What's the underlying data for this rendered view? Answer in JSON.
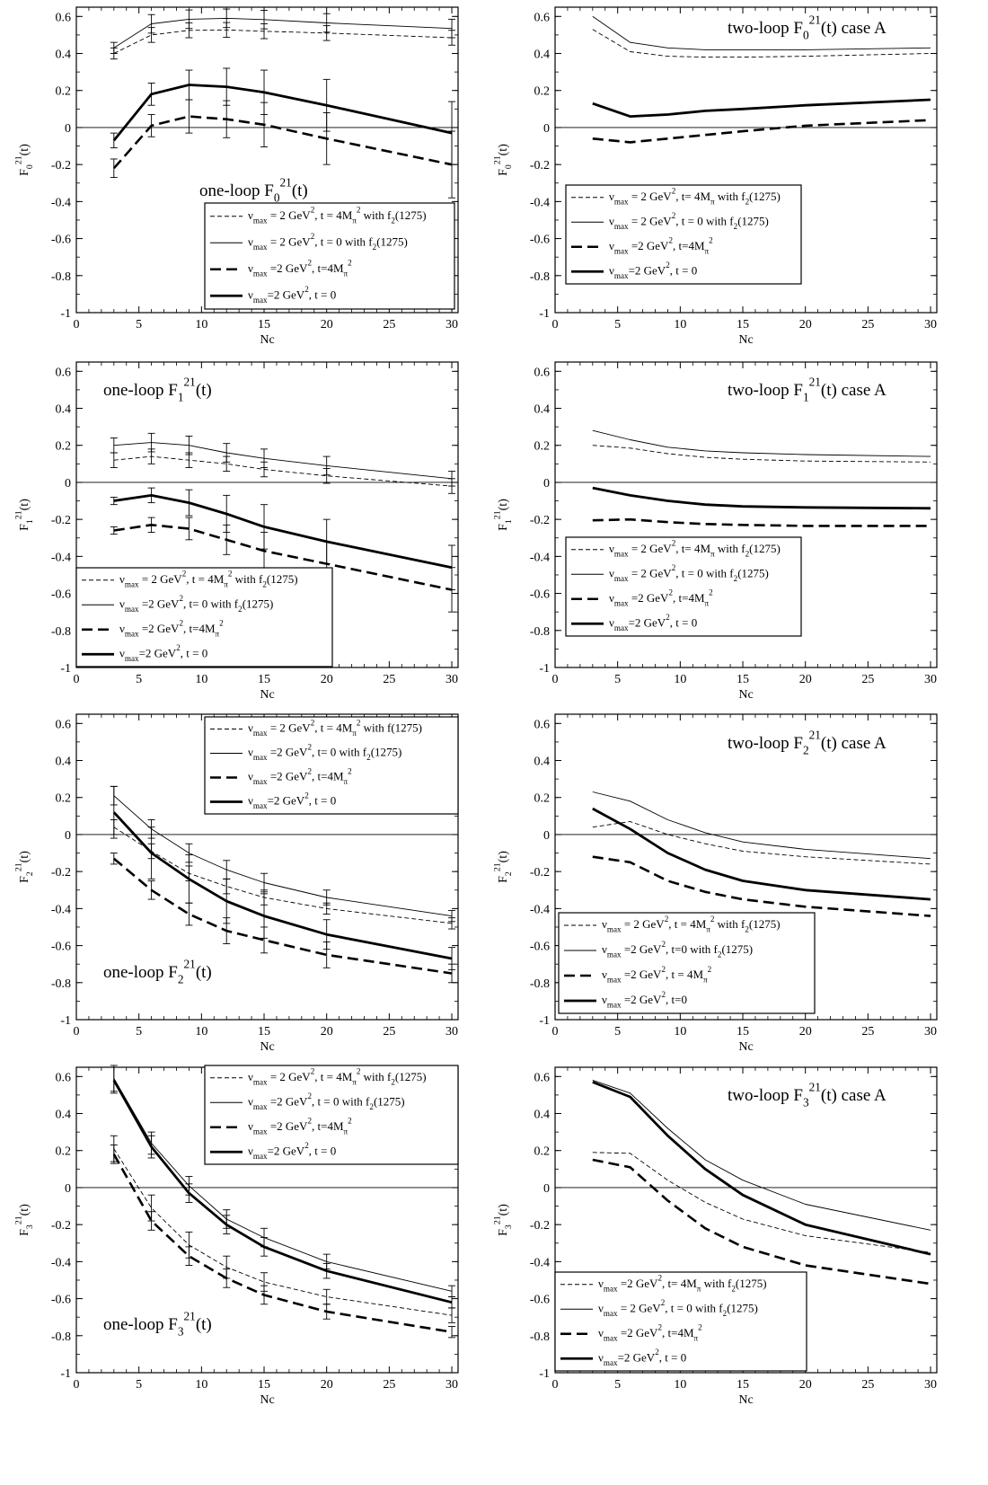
{
  "chart_data": [
    {
      "type": "line",
      "title": "one-loop F_0^21(t)",
      "xlabel": "Nc",
      "ylabel": "F_0^21(t)",
      "xlim": [
        0,
        30.5
      ],
      "ylim": [
        -1,
        0.65
      ],
      "xticks": [
        0,
        5,
        10,
        15,
        20,
        25,
        30
      ],
      "yticks": [
        -1,
        -0.8,
        -0.6,
        -0.4,
        -0.2,
        0,
        0.2,
        0.4,
        0.6
      ],
      "x": [
        3,
        6,
        9,
        12,
        15,
        20,
        30
      ],
      "legend": "box in lower-middle",
      "series": [
        {
          "name": "ν_max = 2 GeV², t = 4M_π² with f_2(1275)",
          "style": "thin-dashed",
          "values": [
            0.4,
            0.5,
            0.525,
            0.527,
            0.52,
            0.51,
            0.485
          ],
          "errors": [
            0.03,
            0.04,
            0.04,
            0.04,
            0.04,
            0.04,
            0.04
          ]
        },
        {
          "name": "ν_max = 2 GeV², t = 0 with f_2(1275)",
          "style": "thin-solid",
          "values": [
            0.43,
            0.56,
            0.585,
            0.59,
            0.583,
            0.565,
            0.535
          ],
          "errors": [
            0.03,
            0.05,
            0.05,
            0.05,
            0.05,
            0.05,
            0.05
          ]
        },
        {
          "name": "ν_max =2 GeV², t=4M_π²",
          "style": "thick-dashed",
          "values": [
            -0.22,
            0.01,
            0.06,
            0.045,
            0.015,
            -0.06,
            -0.2
          ],
          "errors": [
            0.05,
            0.06,
            0.09,
            0.1,
            0.12,
            0.14,
            0.18
          ]
        },
        {
          "name": "ν_max=2 GeV², t = 0",
          "style": "thick-solid",
          "values": [
            -0.07,
            0.18,
            0.23,
            0.22,
            0.19,
            0.12,
            -0.03
          ],
          "errors": [
            0.04,
            0.06,
            0.08,
            0.1,
            0.12,
            0.14,
            0.17
          ]
        }
      ]
    },
    {
      "type": "line",
      "title": "two-loop F_0^21(t) case A",
      "xlabel": "Nc",
      "ylabel": "F_0^21(t)",
      "xlim": [
        0,
        30.5
      ],
      "ylim": [
        -1,
        0.65
      ],
      "xticks": [
        0,
        5,
        10,
        15,
        20,
        25,
        30
      ],
      "yticks": [
        -1,
        -0.8,
        -0.6,
        -0.4,
        -0.2,
        0,
        0.2,
        0.4,
        0.6
      ],
      "x": [
        3,
        6,
        9,
        12,
        15,
        20,
        30
      ],
      "legend": "box on left-middle",
      "series": [
        {
          "name": "ν_max = 2 GeV², t= 4M_π with f_2(1275)",
          "style": "thin-dashed",
          "values": [
            0.53,
            0.41,
            0.385,
            0.38,
            0.38,
            0.385,
            0.4
          ]
        },
        {
          "name": "ν_max = 2 GeV², t = 0  with f_2(1275)",
          "style": "thin-solid",
          "values": [
            0.6,
            0.46,
            0.43,
            0.42,
            0.42,
            0.42,
            0.43
          ]
        },
        {
          "name": "ν_max =2 GeV², t=4M_π²",
          "style": "thick-dashed",
          "values": [
            -0.06,
            -0.08,
            -0.06,
            -0.04,
            -0.02,
            0.01,
            0.04
          ]
        },
        {
          "name": "ν_max=2 GeV², t = 0",
          "style": "thick-solid",
          "values": [
            0.13,
            0.06,
            0.07,
            0.09,
            0.1,
            0.12,
            0.15
          ]
        }
      ]
    },
    {
      "type": "line",
      "title": "one-loop F_1^21(t)",
      "xlabel": "Nc",
      "ylabel": "F_1^21(t)",
      "xlim": [
        0,
        30.5
      ],
      "ylim": [
        -1,
        0.65
      ],
      "xticks": [
        0,
        5,
        10,
        15,
        20,
        25,
        30
      ],
      "yticks": [
        -1,
        -0.8,
        -0.6,
        -0.4,
        -0.2,
        0,
        0.2,
        0.4,
        0.6
      ],
      "x": [
        3,
        6,
        9,
        12,
        15,
        20,
        30
      ],
      "legend": "box at bottom-left",
      "series": [
        {
          "name": "ν_max = 2 GeV², t = 4M_π² with f_2(1275)",
          "style": "thin-dashed",
          "values": [
            0.12,
            0.14,
            0.12,
            0.1,
            0.07,
            0.035,
            -0.02
          ],
          "errors": [
            0.04,
            0.04,
            0.04,
            0.04,
            0.04,
            0.04,
            0.04
          ]
        },
        {
          "name": "ν_max =2 GeV², t= 0 with f_2(1275)",
          "style": "thin-solid",
          "values": [
            0.2,
            0.215,
            0.2,
            0.16,
            0.13,
            0.09,
            0.02
          ],
          "errors": [
            0.04,
            0.05,
            0.05,
            0.05,
            0.05,
            0.05,
            0.04
          ]
        },
        {
          "name": "ν_max =2 GeV², t=4M_π²",
          "style": "thick-dashed",
          "values": [
            -0.26,
            -0.23,
            -0.25,
            -0.31,
            -0.37,
            -0.44,
            -0.58
          ],
          "errors": [
            0.02,
            0.04,
            0.06,
            0.08,
            0.1,
            0.12,
            0.12
          ]
        },
        {
          "name": "ν_max=2 GeV², t = 0",
          "style": "thick-solid",
          "values": [
            -0.1,
            -0.07,
            -0.11,
            -0.17,
            -0.24,
            -0.32,
            -0.46
          ],
          "errors": [
            0.02,
            0.04,
            0.07,
            0.1,
            0.12,
            0.12,
            0.12
          ]
        }
      ]
    },
    {
      "type": "line",
      "title": "two-loop F_1^21(t) case A",
      "xlabel": "Nc",
      "ylabel": "F_1^21(t)",
      "xlim": [
        0,
        30.5
      ],
      "ylim": [
        -1,
        0.65
      ],
      "xticks": [
        0,
        5,
        10,
        15,
        20,
        25,
        30
      ],
      "yticks": [
        -1,
        -0.8,
        -0.6,
        -0.4,
        -0.2,
        0,
        0.2,
        0.4,
        0.6
      ],
      "x": [
        3,
        6,
        9,
        12,
        15,
        20,
        30
      ],
      "legend": "box on left-lower",
      "series": [
        {
          "name": "ν_max = 2 GeV², t= 4M_π with f_2(1275)",
          "style": "thin-dashed",
          "values": [
            0.2,
            0.185,
            0.155,
            0.135,
            0.125,
            0.115,
            0.11
          ]
        },
        {
          "name": "ν_max = 2 GeV², t = 0  with f_2(1275)",
          "style": "thin-solid",
          "values": [
            0.28,
            0.23,
            0.19,
            0.17,
            0.16,
            0.15,
            0.14
          ]
        },
        {
          "name": "ν_max =2 GeV², t=4M_π²",
          "style": "thick-dashed",
          "values": [
            -0.205,
            -0.2,
            -0.215,
            -0.225,
            -0.23,
            -0.235,
            -0.235
          ]
        },
        {
          "name": "ν_max=2 GeV², t = 0",
          "style": "thick-solid",
          "values": [
            -0.03,
            -0.07,
            -0.1,
            -0.12,
            -0.13,
            -0.135,
            -0.14
          ]
        }
      ]
    },
    {
      "type": "line",
      "title": "one-loop F_2^21(t)",
      "xlabel": "Nc",
      "ylabel": "F_2^21(t)",
      "xlim": [
        0,
        30.5
      ],
      "ylim": [
        -1,
        0.65
      ],
      "xticks": [
        0,
        5,
        10,
        15,
        20,
        25,
        30
      ],
      "yticks": [
        -1,
        -0.8,
        -0.6,
        -0.4,
        -0.2,
        0,
        0.2,
        0.4,
        0.6
      ],
      "x": [
        3,
        6,
        9,
        12,
        15,
        20,
        30
      ],
      "legend": "box at top-right",
      "series": [
        {
          "name": "ν_max = 2 GeV², t = 4M_π² with f(1275)",
          "style": "thin-dashed",
          "values": [
            0.04,
            -0.09,
            -0.21,
            -0.28,
            -0.34,
            -0.4,
            -0.48
          ],
          "errors": [
            0.04,
            0.04,
            0.04,
            0.04,
            0.04,
            0.03,
            0.03
          ]
        },
        {
          "name": "ν_max =2 GeV², t= 0 with f_2(1275)",
          "style": "thin-solid",
          "values": [
            0.21,
            0.03,
            -0.1,
            -0.19,
            -0.26,
            -0.34,
            -0.44
          ],
          "errors": [
            0.05,
            0.05,
            0.05,
            0.05,
            0.05,
            0.04,
            0.03
          ]
        },
        {
          "name": "ν_max =2 GeV², t=4M_π²",
          "style": "thick-dashed",
          "values": [
            -0.13,
            -0.3,
            -0.43,
            -0.52,
            -0.57,
            -0.65,
            -0.75
          ],
          "errors": [
            0.03,
            0.05,
            0.06,
            0.07,
            0.07,
            0.07,
            0.05
          ]
        },
        {
          "name": "ν_max=2 GeV², t = 0",
          "style": "thick-solid",
          "values": [
            0.12,
            -0.1,
            -0.24,
            -0.36,
            -0.44,
            -0.54,
            -0.67
          ],
          "errors": [
            0.14,
            0.14,
            0.13,
            0.12,
            0.12,
            0.08,
            0.06
          ]
        }
      ]
    },
    {
      "type": "line",
      "title": "two-loop F_2^21(t) case A",
      "xlabel": "Nc",
      "ylabel": "F_2^21(t)",
      "xlim": [
        0,
        30.5
      ],
      "ylim": [
        -1,
        0.65
      ],
      "xticks": [
        0,
        5,
        10,
        15,
        20,
        25,
        30
      ],
      "yticks": [
        -1,
        -0.8,
        -0.6,
        -0.4,
        -0.2,
        0,
        0.2,
        0.4,
        0.6
      ],
      "x": [
        3,
        6,
        9,
        12,
        15,
        20,
        30
      ],
      "legend": "box at bottom-left",
      "series": [
        {
          "name": "ν_max = 2 GeV², t = 4M_π² with f_2(1275)",
          "style": "thin-dashed",
          "values": [
            0.04,
            0.07,
            0.0,
            -0.05,
            -0.09,
            -0.12,
            -0.16
          ]
        },
        {
          "name": "ν_max =2 GeV², t=0 with f_2(1275)",
          "style": "thin-solid",
          "values": [
            0.23,
            0.18,
            0.08,
            0.01,
            -0.04,
            -0.08,
            -0.13
          ]
        },
        {
          "name": "ν_max =2 GeV², t = 4M_π²",
          "style": "thick-dashed",
          "values": [
            -0.12,
            -0.15,
            -0.25,
            -0.31,
            -0.35,
            -0.39,
            -0.44
          ]
        },
        {
          "name": "ν_max =2 GeV², t=0",
          "style": "thick-solid",
          "values": [
            0.14,
            0.03,
            -0.1,
            -0.19,
            -0.25,
            -0.3,
            -0.35
          ]
        }
      ]
    },
    {
      "type": "line",
      "title": "one-loop F_3^21(t)",
      "xlabel": "Nc",
      "ylabel": "F_3^21(t)",
      "xlim": [
        0,
        30.5
      ],
      "ylim": [
        -1,
        0.65
      ],
      "xticks": [
        0,
        5,
        10,
        15,
        20,
        25,
        30
      ],
      "yticks": [
        -1,
        -0.8,
        -0.6,
        -0.4,
        -0.2,
        0,
        0.2,
        0.4,
        0.6
      ],
      "x": [
        3,
        6,
        9,
        12,
        15,
        20,
        30
      ],
      "legend": "box at top-right",
      "series": [
        {
          "name": "ν_max = 2 GeV², t = 4M_π² with f_2(1275)",
          "style": "thin-dashed",
          "values": [
            0.21,
            -0.11,
            -0.31,
            -0.43,
            -0.51,
            -0.59,
            -0.69
          ],
          "errors": [
            0.07,
            0.07,
            0.07,
            0.06,
            0.05,
            0.04,
            0.04
          ]
        },
        {
          "name": "ν_max =2 GeV², t = 0 with f_2(1275)",
          "style": "thin-solid",
          "values": [
            0.59,
            0.24,
            0.01,
            -0.17,
            -0.27,
            -0.4,
            -0.56
          ],
          "errors": [
            0.07,
            0.06,
            0.05,
            0.05,
            0.05,
            0.04,
            0.03
          ]
        },
        {
          "name": "ν_max =2 GeV², t=4M_π²",
          "style": "thick-dashed",
          "values": [
            0.18,
            -0.18,
            -0.37,
            -0.49,
            -0.58,
            -0.67,
            -0.78
          ],
          "errors": [
            0.05,
            0.05,
            0.05,
            0.05,
            0.05,
            0.04,
            0.03
          ]
        },
        {
          "name": "ν_max=2 GeV², t = 0",
          "style": "thick-solid",
          "values": [
            0.58,
            0.22,
            -0.03,
            -0.2,
            -0.32,
            -0.45,
            -0.62
          ],
          "errors": [
            0.07,
            0.06,
            0.05,
            0.05,
            0.05,
            0.04,
            0.03
          ]
        }
      ]
    },
    {
      "type": "line",
      "title": "two-loop F_3^21(t) case A",
      "xlabel": "Nc",
      "ylabel": "F_3^21(t)",
      "xlim": [
        0,
        30.5
      ],
      "ylim": [
        -1,
        0.65
      ],
      "xticks": [
        0,
        5,
        10,
        15,
        20,
        25,
        30
      ],
      "yticks": [
        -1,
        -0.8,
        -0.6,
        -0.4,
        -0.2,
        0,
        0.2,
        0.4,
        0.6
      ],
      "x": [
        3,
        6,
        9,
        12,
        15,
        20,
        30
      ],
      "legend": "box at bottom-left",
      "series": [
        {
          "name": "ν_max =2 GeV², t= 4M_π with f_2(1275)",
          "style": "thin-dashed",
          "values": [
            0.19,
            0.185,
            0.04,
            -0.08,
            -0.17,
            -0.26,
            -0.35
          ]
        },
        {
          "name": "ν_max = 2 GeV², t = 0  with f_2(1275)",
          "style": "thin-solid",
          "values": [
            0.58,
            0.51,
            0.32,
            0.15,
            0.04,
            -0.09,
            -0.23
          ]
        },
        {
          "name": "ν_max =2 GeV², t=4M_π²",
          "style": "thick-dashed",
          "values": [
            0.15,
            0.11,
            -0.07,
            -0.22,
            -0.32,
            -0.42,
            -0.52
          ]
        },
        {
          "name": "ν_max=2 GeV², t = 0",
          "style": "thick-solid",
          "values": [
            0.57,
            0.49,
            0.28,
            0.1,
            -0.04,
            -0.2,
            -0.36
          ]
        }
      ]
    }
  ]
}
